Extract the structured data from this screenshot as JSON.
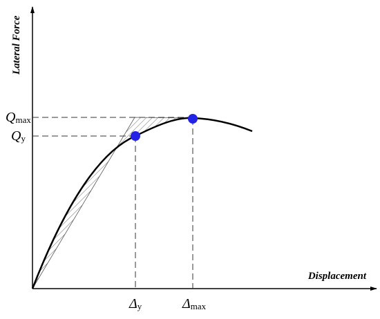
{
  "axes": {
    "y_label": "Lateral Force",
    "x_label": "Displacement"
  },
  "labels": {
    "q_max": {
      "base": "Q",
      "sub": "max"
    },
    "q_y": {
      "base": "Q",
      "sub": "y"
    },
    "delta_y": {
      "base": "Δ",
      "sub": "y"
    },
    "delta_max": {
      "base": "Δ",
      "sub": "max"
    }
  }
}
